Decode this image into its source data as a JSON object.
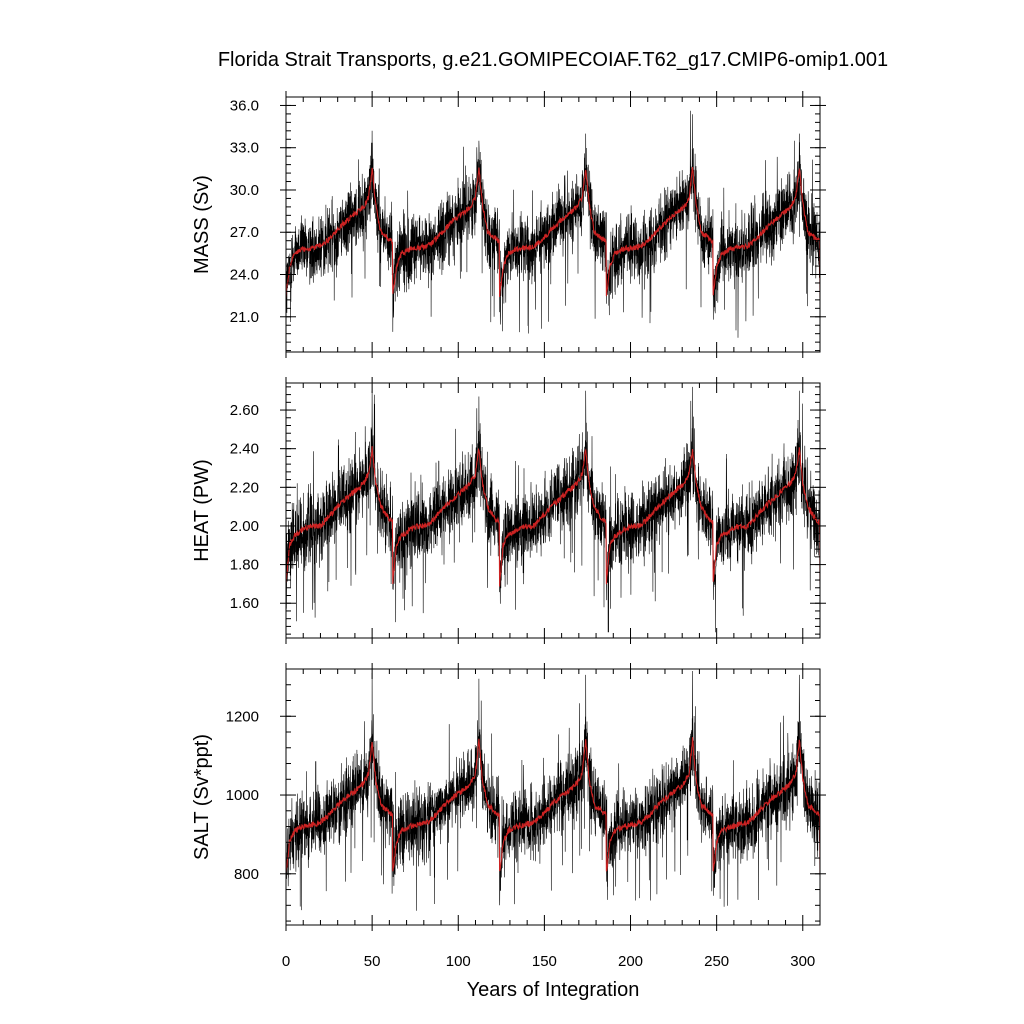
{
  "chart_data": {
    "type": "line",
    "title": "Florida Strait Transports, g.e21.GOMIPECOIAF.T62_g17.CMIP6-omip1.001",
    "xlabel": "Years of Integration",
    "xlim": [
      0,
      310
    ],
    "x_ticks": [
      0,
      50,
      100,
      150,
      200,
      250,
      300
    ],
    "x_tick_labels": [
      "0",
      "50",
      "100",
      "150",
      "200",
      "250",
      "300"
    ],
    "cycle_length_years": 62,
    "cycles": 5,
    "colors": {
      "raw": "#000000",
      "smoothed": "#cc2222"
    },
    "panels": [
      {
        "ylabel": "MASS (Sv)",
        "ylim": [
          18.5,
          36.6
        ],
        "y_ticks": [
          21,
          24,
          27,
          30,
          33,
          36
        ],
        "y_tick_labels": [
          "21.0",
          "24.0",
          "27.0",
          "30.0",
          "33.0",
          "36.0"
        ],
        "series": [
          {
            "kind": "raw-monthly",
            "spread": 1.6,
            "peak_max": [
              34.2,
              33.5,
              34.0,
              34.5,
              34.0
            ],
            "min_value": 18.8
          },
          {
            "kind": "smoothed",
            "anchor_years": [
              0,
              2,
              5,
              10,
              15,
              20,
              25,
              30,
              35,
              40,
              45,
              48,
              50,
              52,
              55,
              60,
              62
            ],
            "values": [
              22.5,
              24.5,
              25.5,
              25.8,
              25.9,
              26.0,
              26.5,
              27.2,
              27.8,
              28.3,
              28.8,
              29.5,
              31.5,
              29.0,
              27.0,
              26.5,
              26.3
            ]
          }
        ]
      },
      {
        "ylabel": "HEAT (PW)",
        "ylim": [
          1.42,
          2.74
        ],
        "y_ticks": [
          1.6,
          1.8,
          2.0,
          2.2,
          2.4,
          2.6
        ],
        "y_tick_labels": [
          "1.60",
          "1.80",
          "2.00",
          "2.20",
          "2.40",
          "2.60"
        ],
        "series": [
          {
            "kind": "raw-monthly",
            "spread": 0.12,
            "peak_max": [
              2.7,
              2.67,
              2.7,
              2.72,
              2.7
            ],
            "min_value": 1.45
          },
          {
            "kind": "smoothed",
            "anchor_years": [
              0,
              2,
              5,
              10,
              15,
              20,
              25,
              30,
              35,
              40,
              45,
              48,
              50,
              52,
              55,
              60,
              62
            ],
            "values": [
              1.7,
              1.9,
              1.95,
              1.98,
              2.0,
              2.0,
              2.05,
              2.1,
              2.14,
              2.18,
              2.22,
              2.27,
              2.4,
              2.22,
              2.1,
              2.03,
              2.02
            ]
          }
        ]
      },
      {
        "ylabel": "SALT (Sv*ppt)",
        "ylim": [
          670,
          1320
        ],
        "y_ticks": [
          800,
          1000,
          1200
        ],
        "y_tick_labels": [
          "800",
          "1000",
          "1200"
        ],
        "series": [
          {
            "kind": "raw-monthly",
            "spread": 58,
            "peak_max": [
              1310,
              1295,
              1305,
              1315,
              1305
            ],
            "min_value": 680
          },
          {
            "kind": "smoothed",
            "anchor_years": [
              0,
              2,
              5,
              10,
              15,
              20,
              25,
              30,
              35,
              40,
              45,
              48,
              50,
              52,
              55,
              60,
              62
            ],
            "values": [
              800,
              880,
              910,
              920,
              925,
              930,
              950,
              975,
              995,
              1010,
              1030,
              1055,
              1140,
              1040,
              975,
              955,
              950
            ]
          }
        ]
      }
    ]
  }
}
